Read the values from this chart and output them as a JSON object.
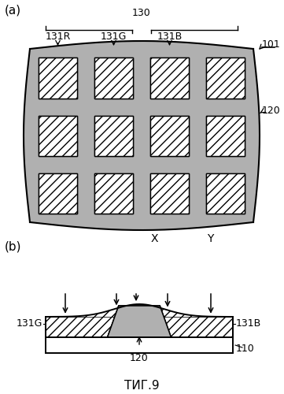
{
  "fig_title": "ΤИГ.9",
  "bg_color": "#ffffff",
  "label_a": "(a)",
  "label_b": "(b)",
  "grid_label_130": "130",
  "grid_label_131R": "131R",
  "grid_label_131G": "131G",
  "grid_label_131B": "131B",
  "grid_label_101": "101",
  "grid_label_120": "120",
  "cross_label_X": "X",
  "cross_label_Y": "Y",
  "sec_label_131G": "131G",
  "sec_label_131B": "131B",
  "sec_label_120": "120",
  "sec_label_110": "110",
  "hatch_pattern": "///",
  "gray_color": "#b0b0b0",
  "light_gray": "#cccccc",
  "dark_gray": "#888888",
  "white": "#ffffff",
  "black": "#000000"
}
